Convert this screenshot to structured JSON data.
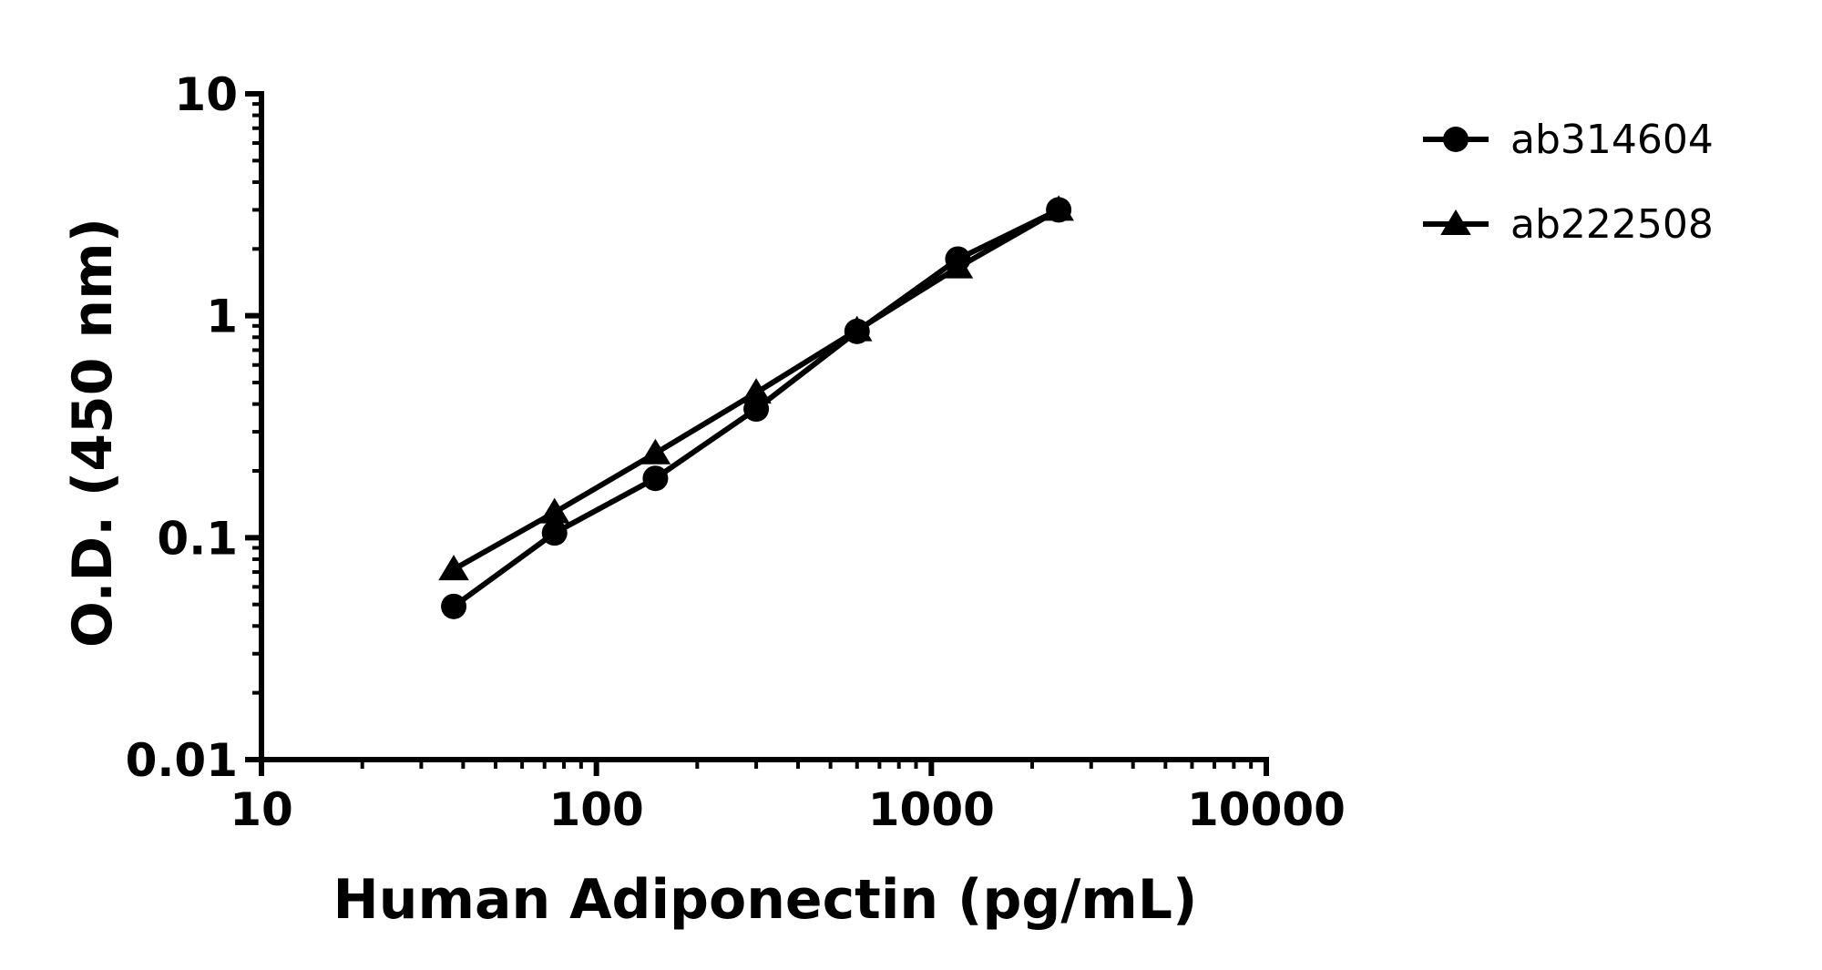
{
  "chart_data": {
    "type": "line",
    "title": "",
    "xlabel": "Human Adiponectin (pg/mL)",
    "ylabel": "O.D. (450 nm)",
    "x_scale": "log",
    "y_scale": "log",
    "xlim": [
      10,
      10000
    ],
    "ylim": [
      0.01,
      10
    ],
    "x_ticks": [
      "10",
      "100",
      "1000",
      "10000"
    ],
    "y_ticks": [
      "0.01",
      "0.1",
      "1",
      "10"
    ],
    "grid": false,
    "legend_position": "top-right",
    "series": [
      {
        "name": "ab314604",
        "marker": "circle",
        "color": "#000000",
        "x": [
          37.5,
          75,
          150,
          300,
          600,
          1200,
          2400
        ],
        "y": [
          0.049,
          0.105,
          0.185,
          0.38,
          0.85,
          1.8,
          3.0
        ]
      },
      {
        "name": "ab222508",
        "marker": "triangle",
        "color": "#000000",
        "x": [
          37.5,
          75,
          150,
          300,
          600,
          1200,
          2400
        ],
        "y": [
          0.072,
          0.13,
          0.24,
          0.45,
          0.86,
          1.65,
          3.0
        ]
      }
    ]
  }
}
